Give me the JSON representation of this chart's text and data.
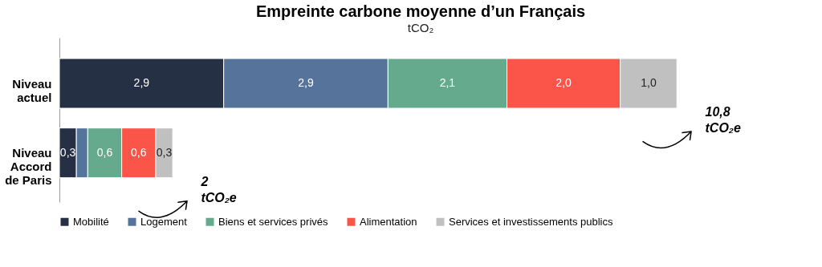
{
  "chart_data": {
    "type": "bar",
    "orientation": "horizontal",
    "stacked": true,
    "title": "Empreinte carbone moyenne d’un Français",
    "subtitle": "tCO₂",
    "categories": [
      "Niveau actuel",
      "Niveau Accord de Paris"
    ],
    "series": [
      {
        "name": "Mobilité",
        "color": "#253044",
        "values": [
          2.9,
          0.3
        ],
        "value_labels": [
          "2,9",
          "0,3"
        ]
      },
      {
        "name": "Logement",
        "color": "#56739b",
        "values": [
          2.9,
          0.2
        ],
        "value_labels": [
          "2,9",
          null
        ]
      },
      {
        "name": "Biens et services privés",
        "color": "#66aa8d",
        "values": [
          2.1,
          0.6
        ],
        "value_labels": [
          "2,1",
          "0,6"
        ]
      },
      {
        "name": "Alimentation",
        "color": "#fa5548",
        "values": [
          2.0,
          0.6
        ],
        "value_labels": [
          "2,0",
          "0,6"
        ]
      },
      {
        "name": "Services et investissements publics",
        "color": "#c0c0c0",
        "values": [
          1.0,
          0.3
        ],
        "value_labels": [
          "1,0",
          "0,3"
        ]
      }
    ],
    "annotations": [
      "10,8 tCO₂e",
      "2 tCO₂e"
    ],
    "legend": "bottom"
  }
}
